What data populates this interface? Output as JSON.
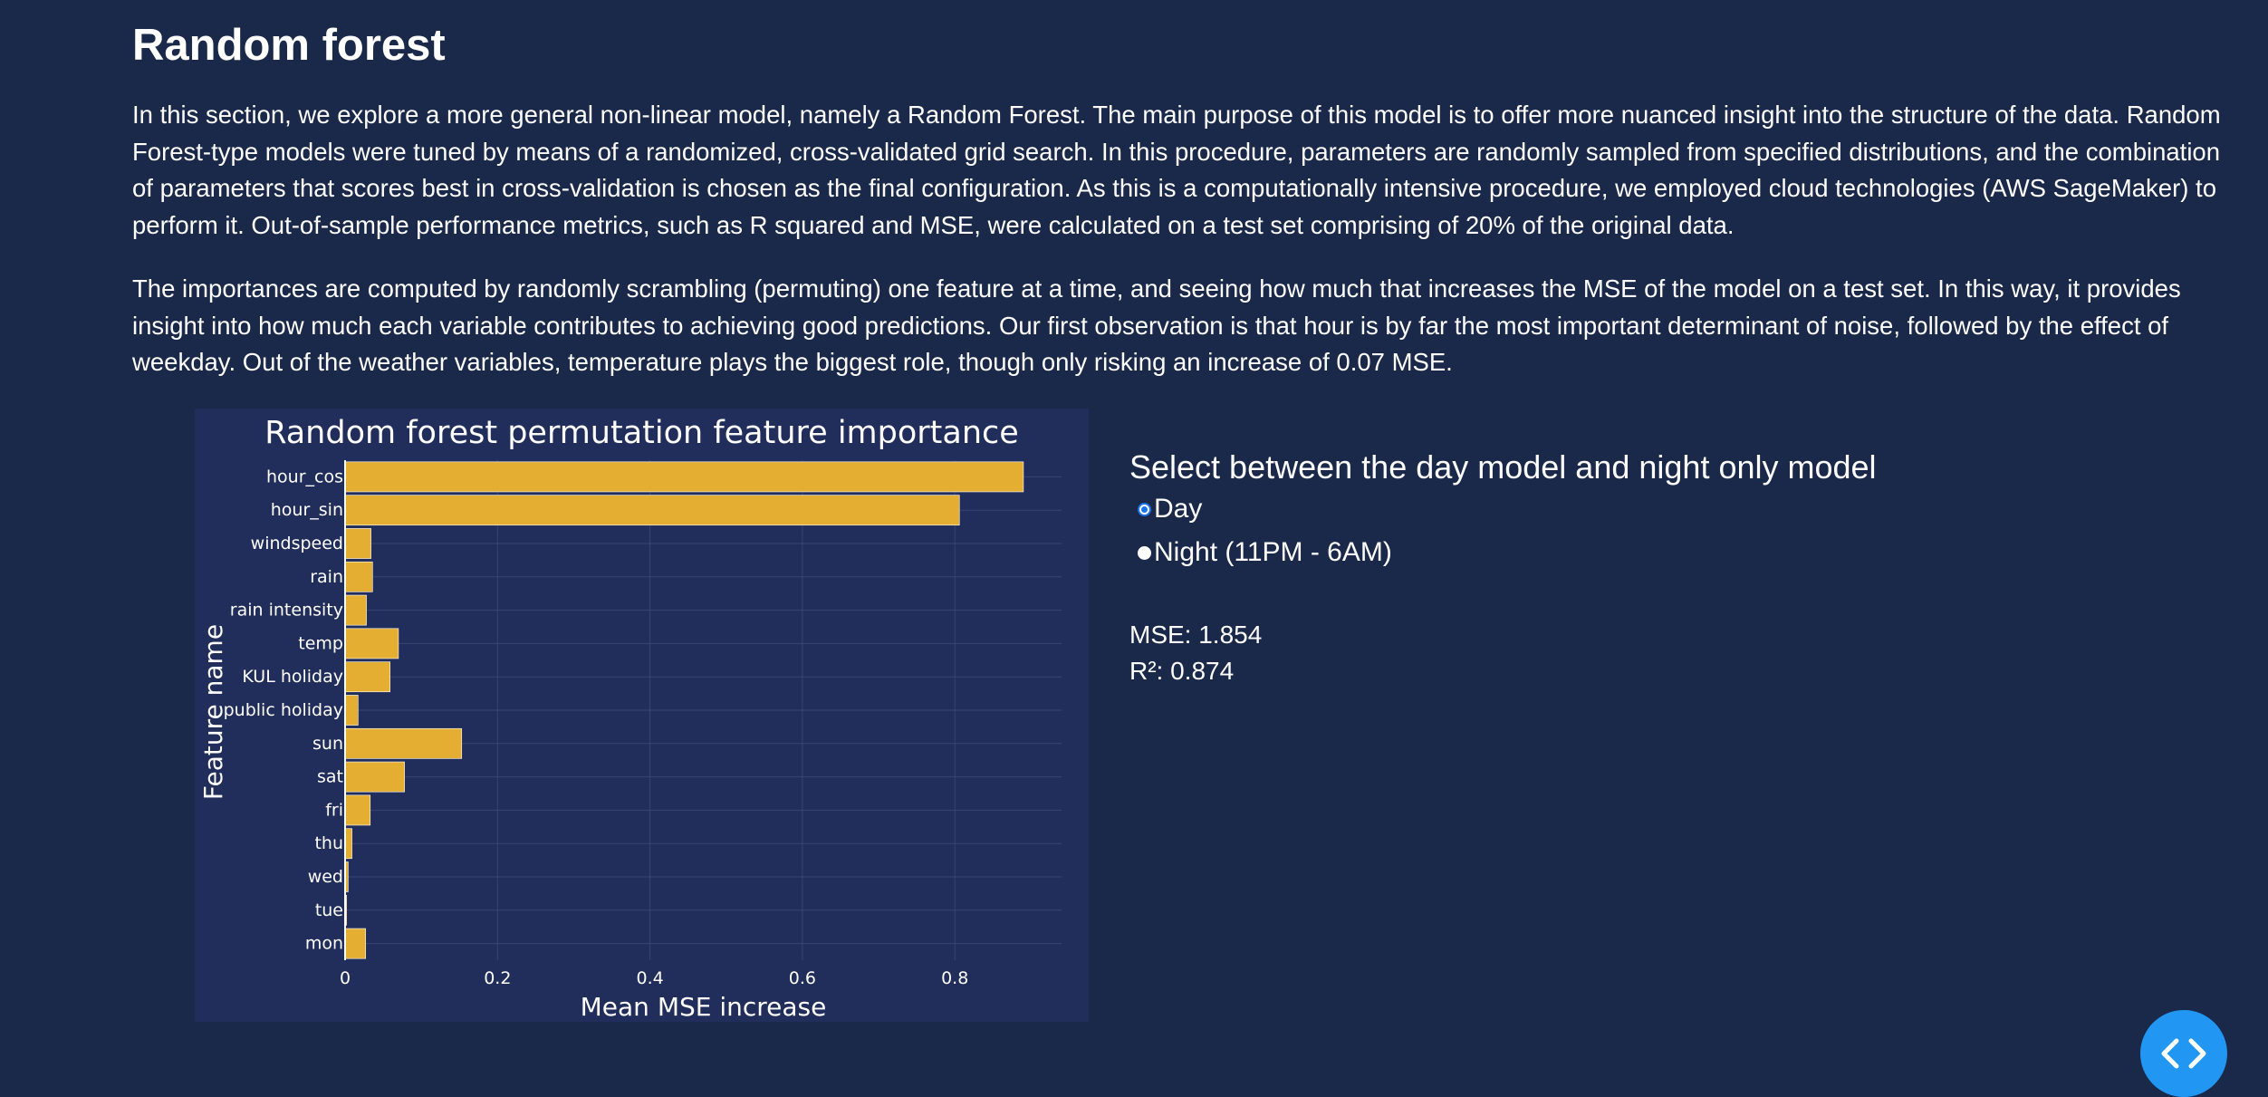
{
  "page": {
    "title": "Random forest",
    "paragraphs": [
      "In this section, we explore a more general non-linear model, namely a Random Forest. The main purpose of this model is to offer more nuanced insight into the structure of the data. Random Forest-type models were tuned by means of a randomized, cross-validated grid search. In this procedure, parameters are randomly sampled from specified distributions, and the combination of parameters that scores best in cross-validation is chosen as the final configuration. As this is a computationally intensive procedure, we employed cloud technologies (AWS SageMaker) to perform it. Out-of-sample performance metrics, such as R squared and MSE, were calculated on a test set comprising of 20% of the original data.",
      "The importances are computed by randomly scrambling (permuting) one feature at a time, and seeing how much that increases the MSE of the model on a test set. In this way, it provides insight into how much each variable contributes to achieving good predictions. Our first observation is that hour is by far the most important determinant of noise, followed by the effect of weekday. Out of the weather variables, temperature plays the biggest role, though only risking an increase of 0.07 MSE."
    ]
  },
  "controls": {
    "title": "Select between the day model and night only model",
    "options": [
      {
        "label": "Day",
        "selected": true
      },
      {
        "label": "Night (11PM - 6AM)",
        "selected": false
      }
    ],
    "mse_text": "MSE: 1.854",
    "r2_text": "R²: 0.874"
  },
  "chart_data": {
    "type": "bar",
    "orientation": "horizontal",
    "title": "Random forest permutation feature importance",
    "xlabel": "Mean MSE increase",
    "ylabel": "Feature name",
    "categories": [
      "hour_cos",
      "hour_sin",
      "windspeed",
      "rain",
      "rain intensity",
      "temp",
      "KUL holiday",
      "public holiday",
      "sun",
      "sat",
      "fri",
      "thu",
      "wed",
      "tue",
      "mon"
    ],
    "values": [
      0.89,
      0.806,
      0.034,
      0.036,
      0.028,
      0.07,
      0.059,
      0.017,
      0.153,
      0.078,
      0.033,
      0.009,
      0.004,
      0.002,
      0.027
    ],
    "xlim": [
      0,
      0.94
    ],
    "xticks": [
      0,
      0.2,
      0.4,
      0.6,
      0.8
    ],
    "xtick_labels": [
      "0",
      "0.2",
      "0.4",
      "0.6",
      "0.8"
    ],
    "grid": true,
    "colors": {
      "bar": "#e4ae33",
      "plot_bg": "#212d5a",
      "grid": "#3a4571",
      "text": "#ffffff"
    }
  },
  "colors": {
    "page_bg": "#1a2849",
    "accent": "#2196f3"
  },
  "icons": {
    "fab": "code-icon"
  }
}
